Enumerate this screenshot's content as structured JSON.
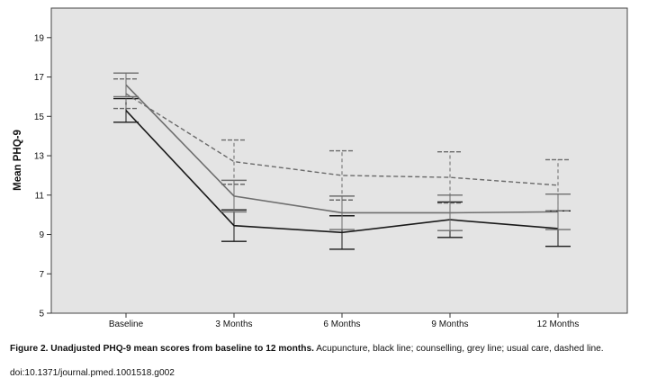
{
  "chart_data": {
    "type": "line",
    "title": "",
    "xlabel": "",
    "ylabel": "Mean PHQ-9",
    "ylim": [
      5,
      20.5
    ],
    "yticks": [
      5,
      7,
      9,
      11,
      13,
      15,
      17,
      19
    ],
    "categories": [
      "Baseline",
      "3 Months",
      "6 Months",
      "9 Months",
      "12 Months"
    ],
    "grid": false,
    "legend": "none",
    "plot_background": "#e4e4e4",
    "series": [
      {
        "key": "acupuncture",
        "values": [
          15.3,
          9.45,
          9.1,
          9.75,
          9.3
        ],
        "ci_low": [
          14.7,
          8.65,
          8.25,
          8.85,
          8.4
        ],
        "ci_high": [
          15.9,
          10.25,
          9.95,
          10.65,
          10.2
        ],
        "color": "#1a1a1a",
        "dashed": false
      },
      {
        "key": "counselling",
        "values": [
          16.6,
          10.95,
          10.1,
          10.1,
          10.15
        ],
        "ci_low": [
          16.0,
          10.15,
          9.25,
          9.2,
          9.25
        ],
        "ci_high": [
          17.2,
          11.75,
          10.95,
          11.0,
          11.05
        ],
        "color": "#6e6e6e",
        "dashed": false
      },
      {
        "key": "usual care",
        "values": [
          16.15,
          12.7,
          12.0,
          11.9,
          11.5
        ],
        "ci_low": [
          15.4,
          11.55,
          10.75,
          10.6,
          10.2
        ],
        "ci_high": [
          16.9,
          13.8,
          13.25,
          13.2,
          12.8
        ],
        "color": "#6a6a6a",
        "dashed": true
      }
    ]
  },
  "caption": {
    "title": "Figure 2. Unadjusted PHQ-9 mean scores from baseline to 12 months.",
    "text": " Acupuncture, black line; counselling, grey line; usual care, dashed line.",
    "doi": "doi:10.1371/journal.pmed.1001518.g002"
  }
}
